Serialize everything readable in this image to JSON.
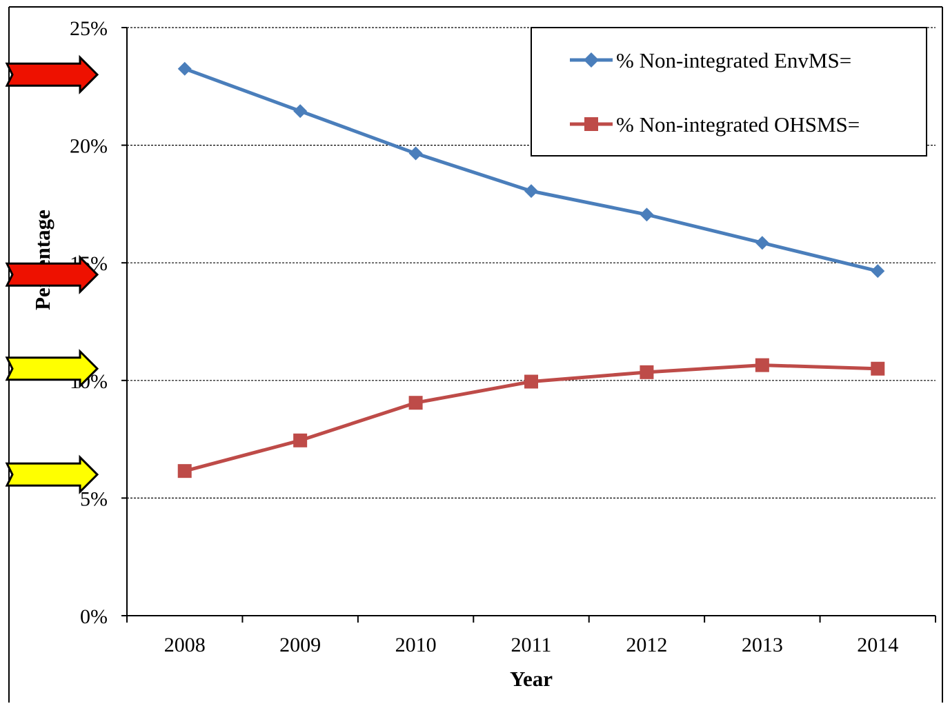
{
  "chart_data": {
    "type": "line",
    "title": "",
    "xlabel": "Year",
    "ylabel": "Percentage",
    "categories": [
      "2008",
      "2009",
      "2010",
      "2011",
      "2012",
      "2013",
      "2014"
    ],
    "ylim": [
      0,
      25
    ],
    "yticks": [
      0,
      5,
      10,
      15,
      20,
      25
    ],
    "ytick_labels": [
      "0%",
      "5%",
      "10%",
      "15%",
      "20%",
      "25%"
    ],
    "grid": "horizontal dashed",
    "legend_position": "top-right",
    "series": [
      {
        "name": "% Non-integrated EnvMS=",
        "color": "#4a7ebb",
        "marker": "diamond",
        "values": [
          23.25,
          21.45,
          19.65,
          18.05,
          17.05,
          15.85,
          14.65
        ]
      },
      {
        "name": "% Non-integrated OHSMS=",
        "color": "#be4b48",
        "marker": "square",
        "values": [
          6.15,
          7.45,
          9.05,
          9.95,
          10.35,
          10.65,
          10.5
        ]
      }
    ],
    "annotations": [
      {
        "type": "arrow",
        "color": "#ee1100",
        "points_to_value": 23.0
      },
      {
        "type": "arrow",
        "color": "#ee1100",
        "points_to_value": 14.5
      },
      {
        "type": "arrow",
        "color": "#ffff00",
        "points_to_value": 10.5
      },
      {
        "type": "arrow",
        "color": "#ffff00",
        "points_to_value": 6.0
      }
    ]
  }
}
